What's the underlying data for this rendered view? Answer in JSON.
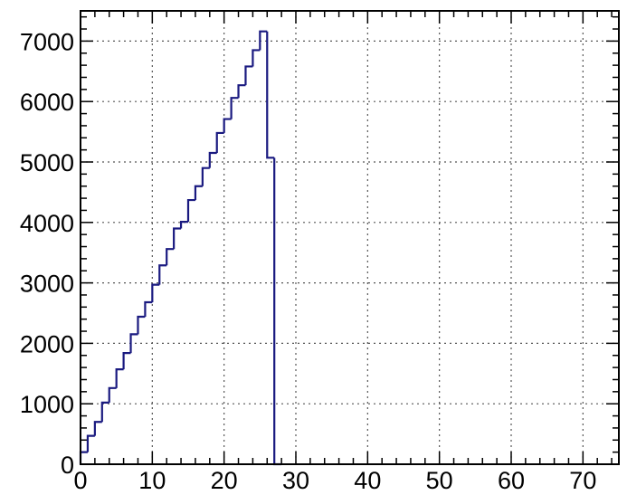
{
  "chart_data": {
    "type": "histogram",
    "title": "",
    "xlabel": "",
    "ylabel": "",
    "xlim": [
      0,
      75
    ],
    "ylim": [
      0,
      7500
    ],
    "bin_width": 1,
    "bin_start": 0,
    "grid": true,
    "x_ticks": [
      0,
      10,
      20,
      30,
      40,
      50,
      60,
      70
    ],
    "x_tick_labels": [
      "0",
      "10",
      "20",
      "30",
      "40",
      "50",
      "60",
      "70"
    ],
    "y_ticks": [
      0,
      1000,
      2000,
      3000,
      4000,
      5000,
      6000,
      7000
    ],
    "y_tick_labels": [
      "0",
      "1000",
      "2000",
      "3000",
      "4000",
      "5000",
      "6000",
      "7000"
    ],
    "values": [
      200,
      470,
      700,
      1020,
      1260,
      1570,
      1840,
      2150,
      2440,
      2680,
      2970,
      3290,
      3560,
      3900,
      4010,
      4370,
      4600,
      4900,
      5150,
      5480,
      5710,
      6060,
      6270,
      6580,
      6850,
      7160,
      5070,
      0
    ],
    "line_color": "#1a1a80"
  }
}
